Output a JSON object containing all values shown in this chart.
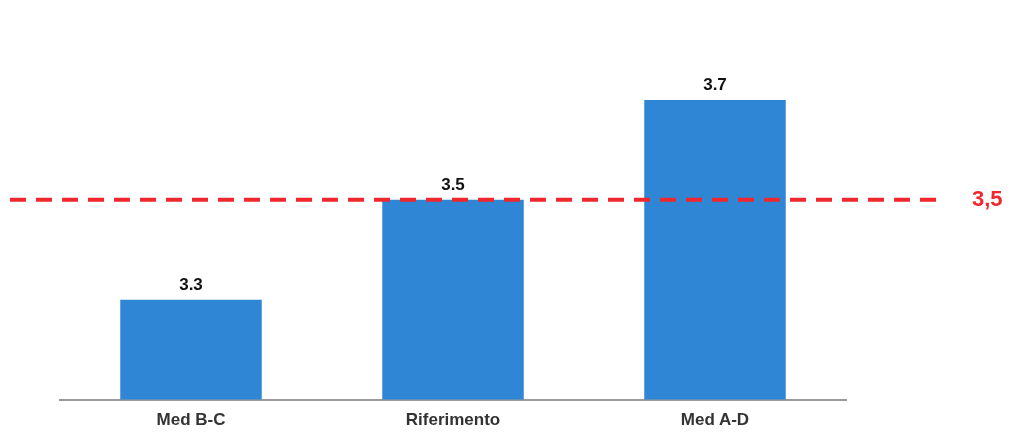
{
  "chart_data": {
    "type": "bar",
    "categories": [
      "Med B-C",
      "Riferimento",
      "Med A-D"
    ],
    "values": [
      3.3,
      3.5,
      3.7
    ],
    "color": "#2e86d4",
    "data_labels": true,
    "tick_labels": "x",
    "ref_lines": [
      {
        "axis": "y",
        "value": 3.5,
        "label": "3,5",
        "color": "#f0282d",
        "line_style": "dashed"
      }
    ]
  }
}
